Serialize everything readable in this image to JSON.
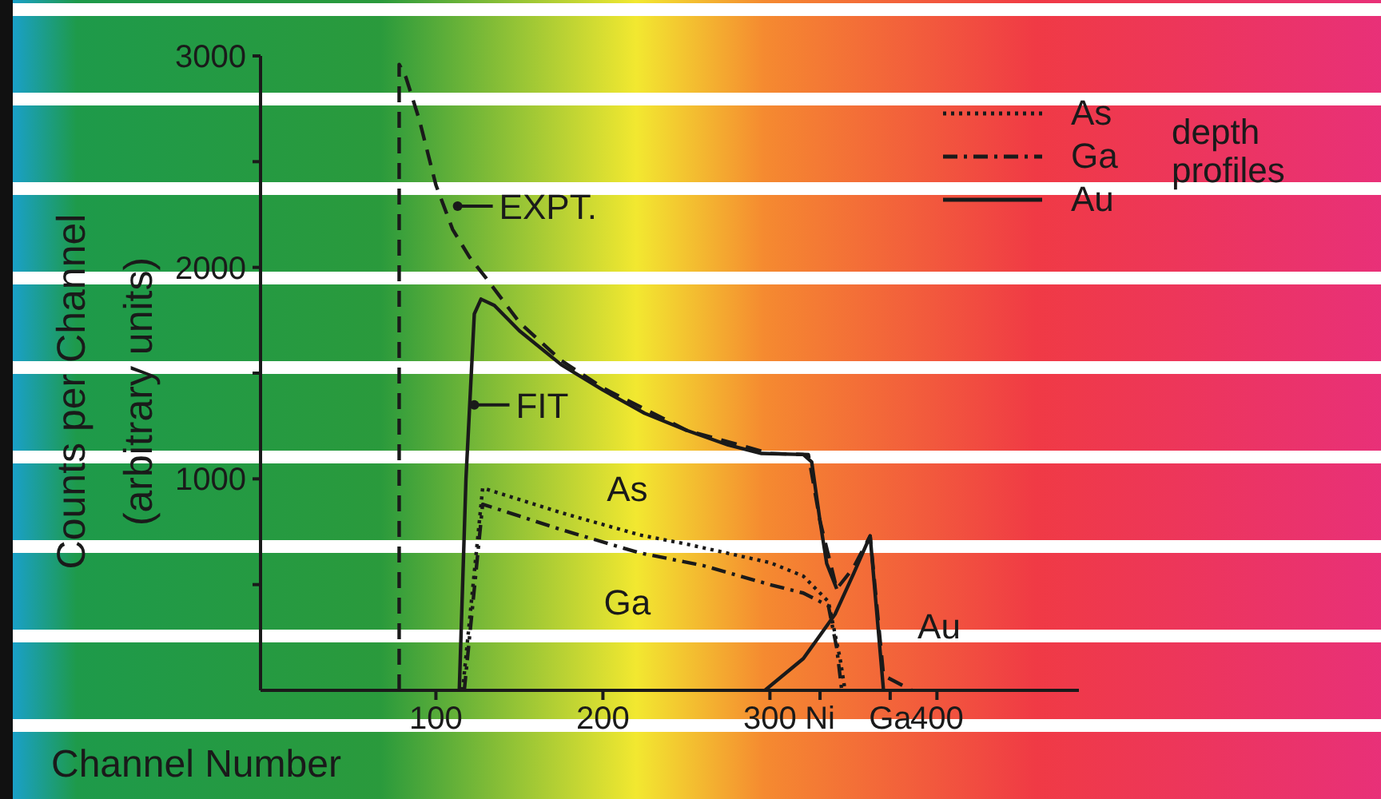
{
  "chart_data": {
    "type": "line",
    "xlabel": "Channel Number",
    "ylabel": "Counts per Channel (arbitrary units)",
    "legend_title": "depth profiles",
    "legend": "top right",
    "xlim": [
      -5,
      485
    ],
    "ylim": [
      0,
      3000
    ],
    "xticks": [
      100,
      200,
      300,
      {
        "value": 330,
        "label": "Ni"
      },
      {
        "value": 372,
        "label": "Ga"
      },
      400
    ],
    "yticks": [
      {
        "value": 500,
        "label": null
      },
      1000,
      {
        "value": 1500,
        "label": null
      },
      2000,
      {
        "value": 2500,
        "label": null
      },
      3000
    ],
    "series": [
      {
        "color": "#1a1a1a",
        "line_style": "dashed",
        "x": [
          78,
          78,
          82,
          90,
          100,
          110,
          120,
          130,
          150,
          175,
          200,
          250,
          300,
          323,
          330,
          340,
          350,
          360,
          368,
          385
        ],
        "values": [
          0,
          2960,
          2900,
          2700,
          2390,
          2180,
          2050,
          1950,
          1740,
          1560,
          1430,
          1230,
          1120,
          1115,
          800,
          480,
          580,
          730,
          70,
          0
        ]
      },
      {
        "color": "#1a1a1a",
        "line_style": "solid",
        "x": [
          114,
          118,
          123,
          127,
          135,
          150,
          175,
          200,
          225,
          250,
          275,
          295,
          320,
          325,
          330,
          334,
          340
        ],
        "values": [
          0,
          1000,
          1780,
          1850,
          1820,
          1700,
          1540,
          1420,
          1310,
          1230,
          1160,
          1120,
          1115,
          1080,
          800,
          600,
          480
        ]
      },
      {
        "name": "As",
        "color": "#1a1a1a",
        "line_style": "dotted",
        "x": [
          116,
          128,
          175,
          222,
          251,
          300,
          320,
          335,
          342,
          345
        ],
        "values": [
          0,
          957,
          840,
          735,
          690,
          604,
          540,
          420,
          150,
          0
        ]
      },
      {
        "name": "Ga",
        "color": "#1a1a1a",
        "line_style": "dashdot",
        "x": [
          117,
          128,
          175,
          222,
          260,
          300,
          320,
          335,
          340,
          343
        ],
        "values": [
          0,
          880,
          760,
          650,
          590,
          500,
          460,
          400,
          200,
          0
        ]
      },
      {
        "name": "Au",
        "color": "#1a1a1a",
        "line_style": "solid",
        "x": [
          297,
          320,
          339,
          350,
          360,
          368
        ],
        "values": [
          0,
          150,
          360,
          550,
          730,
          0
        ]
      }
    ],
    "annotations": [
      {
        "text": "EXPT.",
        "x": 113,
        "y": 2290
      },
      {
        "text": "FIT",
        "x": 123,
        "y": 1350
      },
      {
        "text": "As",
        "x": 205,
        "y": 773
      },
      {
        "text": "Ga",
        "x": 205,
        "y": 690
      },
      {
        "text": "Au",
        "x": 363,
        "y": 456
      }
    ]
  }
}
